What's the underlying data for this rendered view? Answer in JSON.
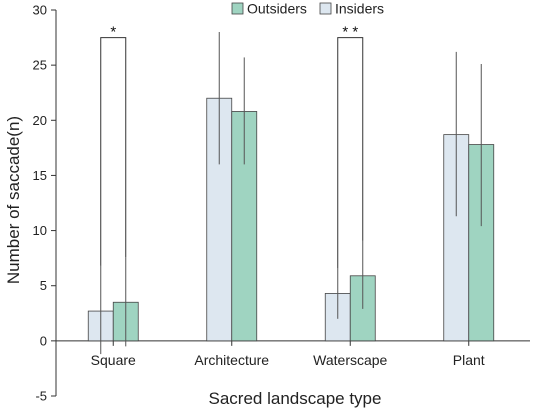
{
  "chart_data": {
    "type": "bar",
    "categories": [
      "Square",
      "Architecture",
      "Waterscape",
      "Plant"
    ],
    "series": [
      {
        "name": "Insiders",
        "color": "#dde7f0",
        "values": [
          2.7,
          22.0,
          4.3,
          18.7
        ],
        "error_low": [
          -1.2,
          16.0,
          2.0,
          11.3
        ],
        "error_high": [
          6.8,
          28.0,
          6.6,
          26.2
        ]
      },
      {
        "name": "Outsiders",
        "color": "#9fd4c1",
        "values": [
          3.5,
          20.8,
          5.9,
          17.8
        ],
        "error_low": [
          -0.5,
          16.0,
          2.9,
          10.4
        ],
        "error_high": [
          7.6,
          25.7,
          9.1,
          25.1
        ]
      }
    ],
    "legend": [
      "Outsiders",
      "Insiders"
    ],
    "legend_position": "top",
    "xlabel": "Sacred landscape type",
    "ylabel": "Number of saccade(n)",
    "ylim": [
      -5,
      30
    ],
    "yticks": [
      -5,
      0,
      5,
      10,
      15,
      20,
      25,
      30
    ],
    "grid": false,
    "significance": [
      {
        "category": "Square",
        "label": "*",
        "y": 27.5
      },
      {
        "category": "Waterscape",
        "label": "* *",
        "y": 27.5
      }
    ]
  }
}
